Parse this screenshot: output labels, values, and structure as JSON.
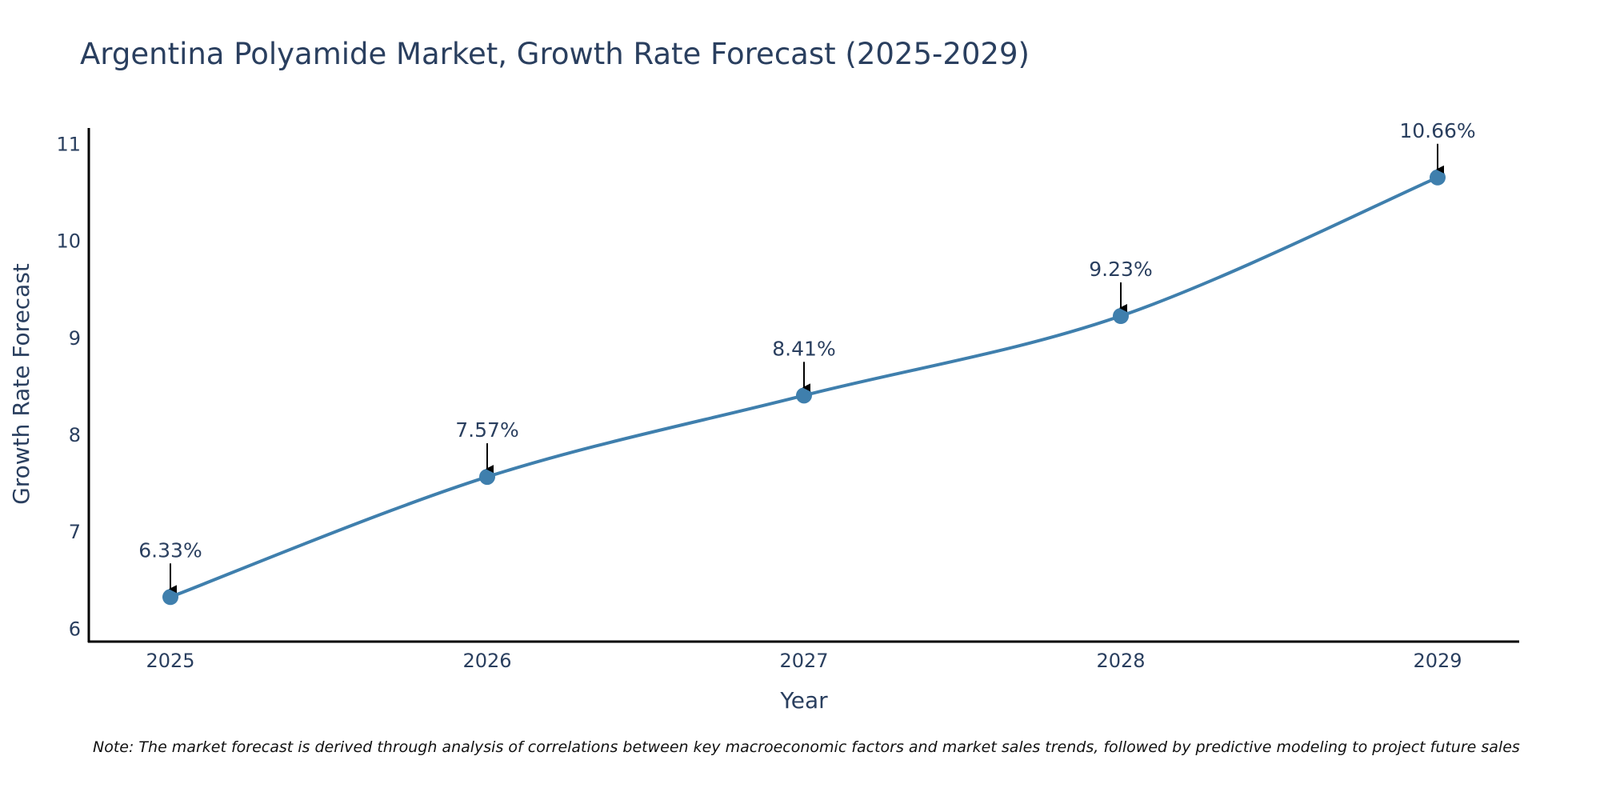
{
  "chart_data": {
    "type": "line",
    "title": "Argentina Polyamide Market, Growth Rate Forecast (2025-2029)",
    "xlabel": "Year",
    "ylabel": "Growth Rate Forecast",
    "categories": [
      "2025",
      "2026",
      "2027",
      "2028",
      "2029"
    ],
    "values": [
      6.33,
      7.57,
      8.41,
      9.23,
      10.66
    ],
    "data_labels": [
      "6.33%",
      "7.57%",
      "8.41%",
      "9.23%",
      "10.66%"
    ],
    "yticks": [
      6,
      7,
      8,
      9,
      10,
      11
    ],
    "ylim": [
      5.87,
      11.17
    ],
    "grid": false,
    "line_color": "#3f7fad",
    "marker_color": "#3f7fad",
    "note": "Note: The market forecast is derived through analysis of correlations between key macroeconomic factors and market sales trends, followed by predictive modeling to project future sales"
  }
}
